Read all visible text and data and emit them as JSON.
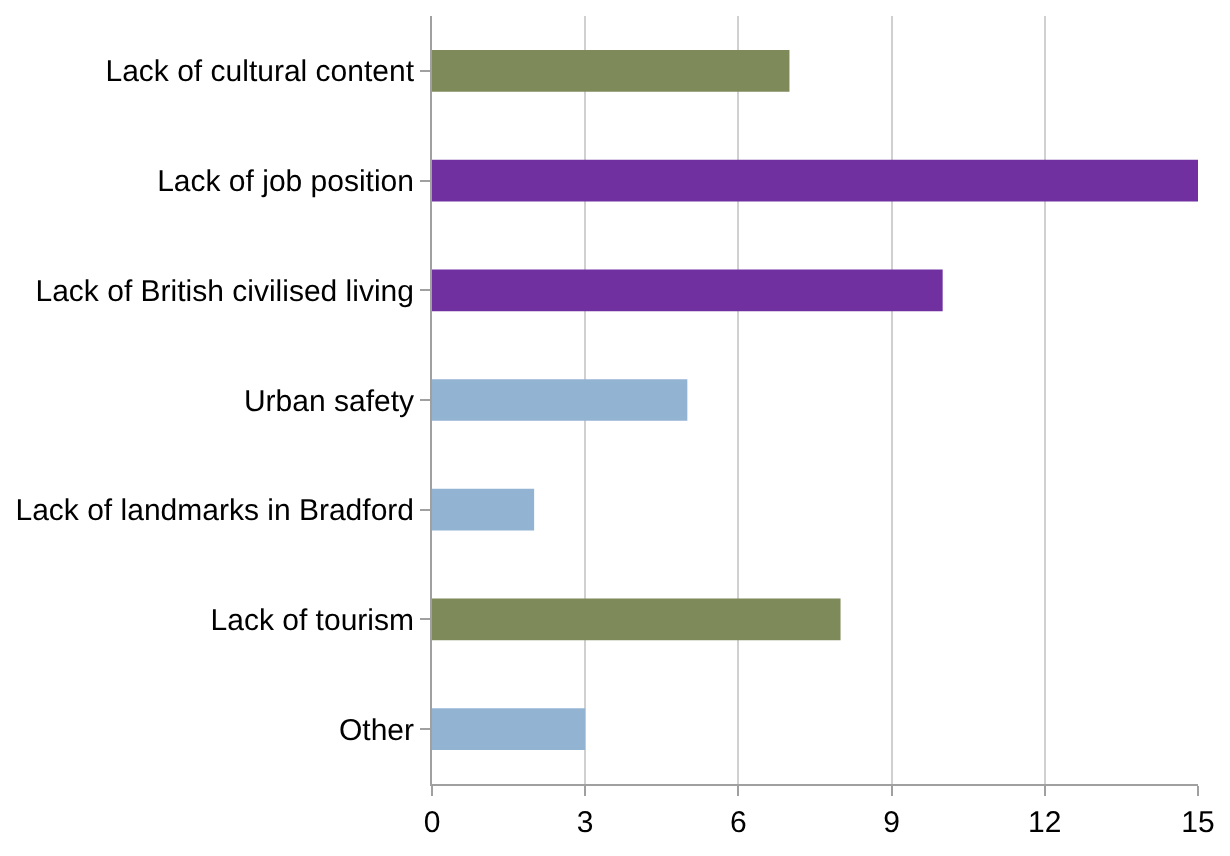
{
  "chart_data": {
    "type": "bar",
    "orientation": "horizontal",
    "categories": [
      "Lack of cultural content",
      "Lack of job position",
      "Lack of British civilised living",
      "Urban safety",
      "Lack of landmarks in Bradford",
      "Lack of tourism",
      "Other"
    ],
    "values": [
      7,
      15,
      10,
      5,
      2,
      8,
      3
    ],
    "colors": [
      "#7f8a5b",
      "#7030a0",
      "#7030a0",
      "#93b3d3",
      "#93b3d3",
      "#7f8a5b",
      "#93b3d3"
    ],
    "xlim": [
      0,
      15
    ],
    "xticks": [
      0,
      3,
      6,
      9,
      12,
      15
    ],
    "grid": "x"
  }
}
